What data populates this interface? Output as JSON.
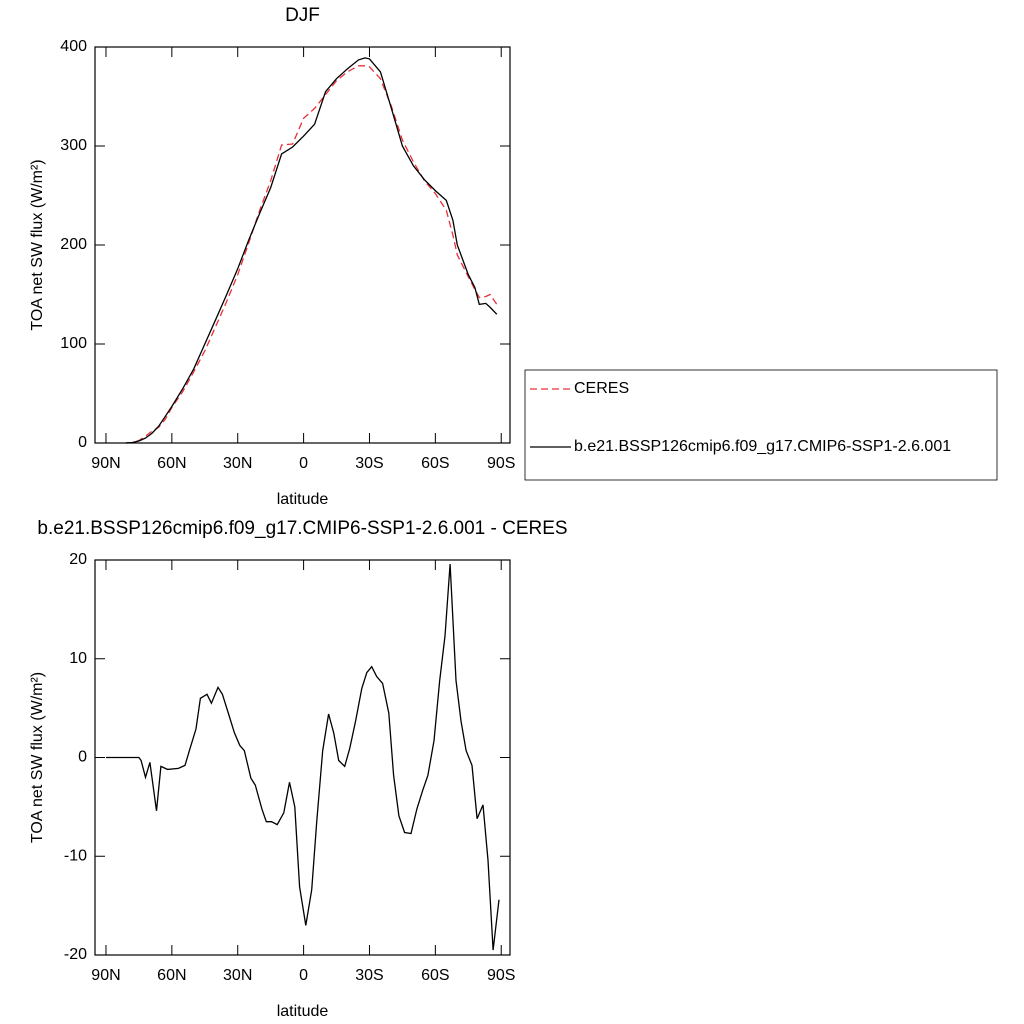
{
  "chart_data": [
    {
      "type": "line",
      "title": "DJF",
      "xlabel": "latitude",
      "ylabel": "TOA net SW flux (W/m²)",
      "x": [
        81,
        78,
        75,
        72,
        69,
        66,
        63,
        60,
        55,
        50,
        45,
        40,
        35,
        30,
        25,
        20,
        15,
        10,
        5,
        0,
        -5,
        -10,
        -15,
        -20,
        -25,
        -28,
        -30,
        -35,
        -40,
        -45,
        -50,
        -55,
        -60,
        -65,
        -68,
        -70,
        -75,
        -78,
        -80,
        -83,
        -85,
        -88
      ],
      "series": [
        {
          "name": "CERES",
          "color": "#e8303a",
          "dashed": true,
          "values": [
            0,
            0.5,
            2.5,
            7,
            12,
            16,
            24,
            36,
            52,
            72,
            93,
            118,
            143,
            170,
            202,
            235,
            265,
            301,
            302,
            328,
            338,
            352,
            366,
            375,
            381,
            381,
            380,
            368,
            340,
            306,
            284,
            265,
            252,
            235,
            210,
            190,
            168,
            155,
            147,
            148,
            150,
            140
          ]
        },
        {
          "name": "b.e21.BSSP126cmip6.f09_g17.CMIP6-SSP1-2.6.001",
          "color": "#000000",
          "dashed": false,
          "values": [
            0,
            0.5,
            2,
            5,
            10,
            17,
            27,
            37,
            55,
            75,
            100,
            125,
            150,
            176,
            205,
            232,
            258,
            292,
            299,
            310,
            322,
            355,
            368,
            378,
            387,
            389,
            388,
            375,
            338,
            300,
            280,
            266,
            255,
            245,
            225,
            200,
            170,
            157,
            140,
            141,
            137,
            130
          ]
        }
      ],
      "xlim": [
        95,
        -94
      ],
      "ylim": [
        0,
        400
      ],
      "xticks": [
        {
          "value": 90,
          "label": "90N"
        },
        {
          "value": 60,
          "label": "60N"
        },
        {
          "value": 30,
          "label": "30N"
        },
        0,
        {
          "value": -30,
          "label": "30S"
        },
        {
          "value": -60,
          "label": "60S"
        },
        {
          "value": -90,
          "label": "90S"
        }
      ],
      "yticks": [
        0,
        100,
        200,
        300,
        400
      ],
      "legend": "right"
    },
    {
      "type": "line",
      "title": "b.e21.BSSP126cmip6.f09_g17.CMIP6-SSP1-2.6.001 - CERES",
      "xlabel": "latitude",
      "ylabel": "TOA net SW flux (W/m²)",
      "x": [
        90,
        75,
        74,
        72,
        70,
        67,
        65,
        62,
        57,
        54,
        52,
        49,
        47,
        44,
        42,
        39,
        37,
        34,
        31.5,
        29,
        27,
        24,
        22,
        19,
        17,
        14.6,
        12,
        9,
        6.4,
        4,
        1.8,
        -1,
        -3.7,
        -6,
        -8.7,
        -11.4,
        -13.7,
        -16,
        -18.7,
        -21,
        -23.7,
        -26.5,
        -28.8,
        -31,
        -33.3,
        -36,
        -38.8,
        -41,
        -43.4,
        -46,
        -48.9,
        -51.6,
        -54.3,
        -56.6,
        -59.4,
        -62,
        -64.4,
        -66.7,
        -69.4,
        -71.7,
        -74,
        -76.7,
        -79,
        -81.7,
        -84,
        -86.3,
        -89
      ],
      "series": [
        {
          "color": "#000000",
          "dashed": false,
          "values": [
            0,
            0,
            -0.3,
            -2,
            -0.5,
            -5.4,
            -0.9,
            -1.2,
            -1.1,
            -0.8,
            0.7,
            2.9,
            6,
            6.4,
            5.5,
            7.1,
            6.4,
            4.3,
            2.5,
            1.2,
            0.7,
            -2.1,
            -2.8,
            -5.2,
            -6.5,
            -6.5,
            -6.8,
            -5.6,
            -2.5,
            -5,
            -13.1,
            -17,
            -13.4,
            -6.4,
            0.7,
            4.4,
            2.5,
            -0.3,
            -0.9,
            0.9,
            3.7,
            7,
            8.6,
            9.2,
            8.2,
            7.5,
            4.5,
            -1.8,
            -5.9,
            -7.6,
            -7.7,
            -5.2,
            -3.3,
            -1.8,
            1.7,
            7.8,
            12.3,
            19.6,
            7.8,
            3.7,
            0.7,
            -0.8,
            -6.2,
            -4.8,
            -10.4,
            -19.5,
            -14.4
          ]
        }
      ],
      "xlim": [
        95,
        -94
      ],
      "ylim": [
        -20,
        20
      ],
      "xticks": [
        {
          "value": 90,
          "label": "90N"
        },
        {
          "value": 60,
          "label": "60N"
        },
        {
          "value": 30,
          "label": "30N"
        },
        0,
        {
          "value": -30,
          "label": "30S"
        },
        {
          "value": -60,
          "label": "60S"
        },
        {
          "value": -90,
          "label": "90S"
        }
      ],
      "yticks": [
        -20,
        -10,
        0,
        10,
        20
      ]
    }
  ]
}
